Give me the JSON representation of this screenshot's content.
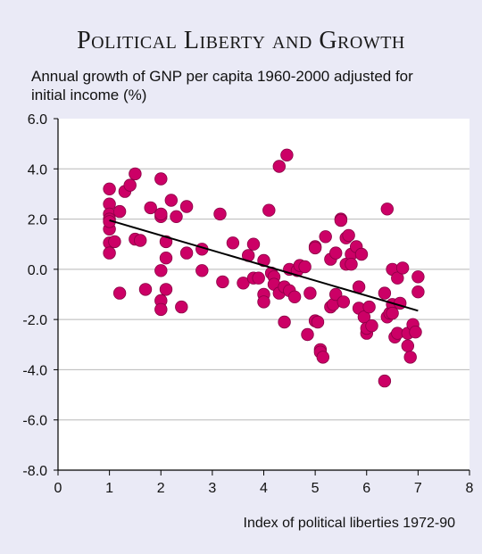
{
  "chart_data": {
    "type": "scatter",
    "title": "Political Liberty and Growth",
    "ylabel": "Annual growth of GNP per capita 1960-2000 adjusted for initial income (%)",
    "xlabel": "Index of political liberties 1972-90",
    "xlim": [
      0,
      8
    ],
    "ylim": [
      -8,
      6
    ],
    "xticks": [
      "0",
      "1",
      "2",
      "3",
      "4",
      "5",
      "6",
      "7",
      "8"
    ],
    "yticks": [
      "6.0",
      "4.0",
      "2.0",
      "0.0",
      "-2.0",
      "-4.0",
      "-6.0",
      "-8.0"
    ],
    "grid": "horizontal",
    "point_color": "#cc0066",
    "trend_line": {
      "x": [
        1,
        7
      ],
      "y": [
        1.95,
        -1.65
      ]
    },
    "x": [
      1,
      1,
      1,
      1,
      1,
      1,
      1,
      1,
      1.1,
      1.2,
      1.2,
      1.3,
      1.4,
      1.5,
      1.5,
      1.6,
      1.7,
      1.8,
      2,
      2,
      2,
      2,
      2,
      2,
      2.1,
      2.1,
      2.1,
      2.2,
      2.3,
      2.4,
      2.5,
      2.5,
      2.8,
      2.8,
      3.15,
      3.2,
      3.4,
      3.6,
      3.7,
      3.8,
      3.8,
      3.9,
      4,
      4,
      4,
      4.1,
      4.15,
      4.2,
      4.2,
      4.3,
      4.3,
      4.4,
      4.4,
      4.45,
      4.5,
      4.5,
      4.6,
      4.65,
      4.7,
      4.8,
      4.85,
      4.9,
      5,
      5,
      5,
      5.05,
      5.1,
      5.1,
      5.15,
      5.2,
      5.3,
      5.3,
      5.35,
      5.4,
      5.4,
      5.5,
      5.5,
      5.55,
      5.6,
      5.6,
      5.65,
      5.7,
      5.7,
      5.8,
      5.85,
      5.85,
      5.9,
      5.95,
      6,
      6,
      6.05,
      6.1,
      6.35,
      6.35,
      6.4,
      6.4,
      6.45,
      6.5,
      6.5,
      6.5,
      6.55,
      6.6,
      6.6,
      6.65,
      6.7,
      6.8,
      6.8,
      6.85,
      6.9,
      6.95,
      7,
      7
    ],
    "y": [
      3.2,
      2.6,
      2.2,
      2.0,
      1.6,
      1.05,
      0.65,
      1.9,
      1.1,
      2.3,
      -0.95,
      3.1,
      3.35,
      3.8,
      1.2,
      1.15,
      -0.8,
      2.45,
      2.1,
      2.2,
      -0.05,
      -1.25,
      -1.6,
      3.6,
      1.1,
      0.45,
      -0.8,
      2.75,
      2.1,
      -1.5,
      2.5,
      0.65,
      0.8,
      -0.05,
      2.2,
      -0.5,
      1.05,
      -0.55,
      0.55,
      1.0,
      -0.35,
      -0.35,
      0.35,
      -1.0,
      -1.3,
      2.35,
      -0.15,
      -0.3,
      -0.6,
      4.1,
      -0.95,
      -2.1,
      -0.7,
      4.55,
      -0.85,
      0.0,
      -1.1,
      -0.05,
      0.15,
      0.1,
      -2.6,
      -0.95,
      0.9,
      -2.05,
      0.85,
      -2.1,
      -3.2,
      -3.3,
      -3.5,
      1.3,
      -1.5,
      0.4,
      -1.4,
      0.65,
      -1.0,
      2.0,
      1.95,
      -1.3,
      1.25,
      0.2,
      1.35,
      0.6,
      0.2,
      0.9,
      -0.7,
      -1.55,
      0.6,
      -1.9,
      -2.55,
      -2.35,
      -1.5,
      -2.25,
      -0.95,
      -4.45,
      2.4,
      -1.9,
      -1.75,
      0.0,
      -1.4,
      -1.75,
      -2.7,
      -0.35,
      -2.55,
      -1.35,
      0.05,
      -2.55,
      -3.05,
      -3.5,
      -2.2,
      -2.5,
      -0.9,
      -0.3
    ]
  }
}
